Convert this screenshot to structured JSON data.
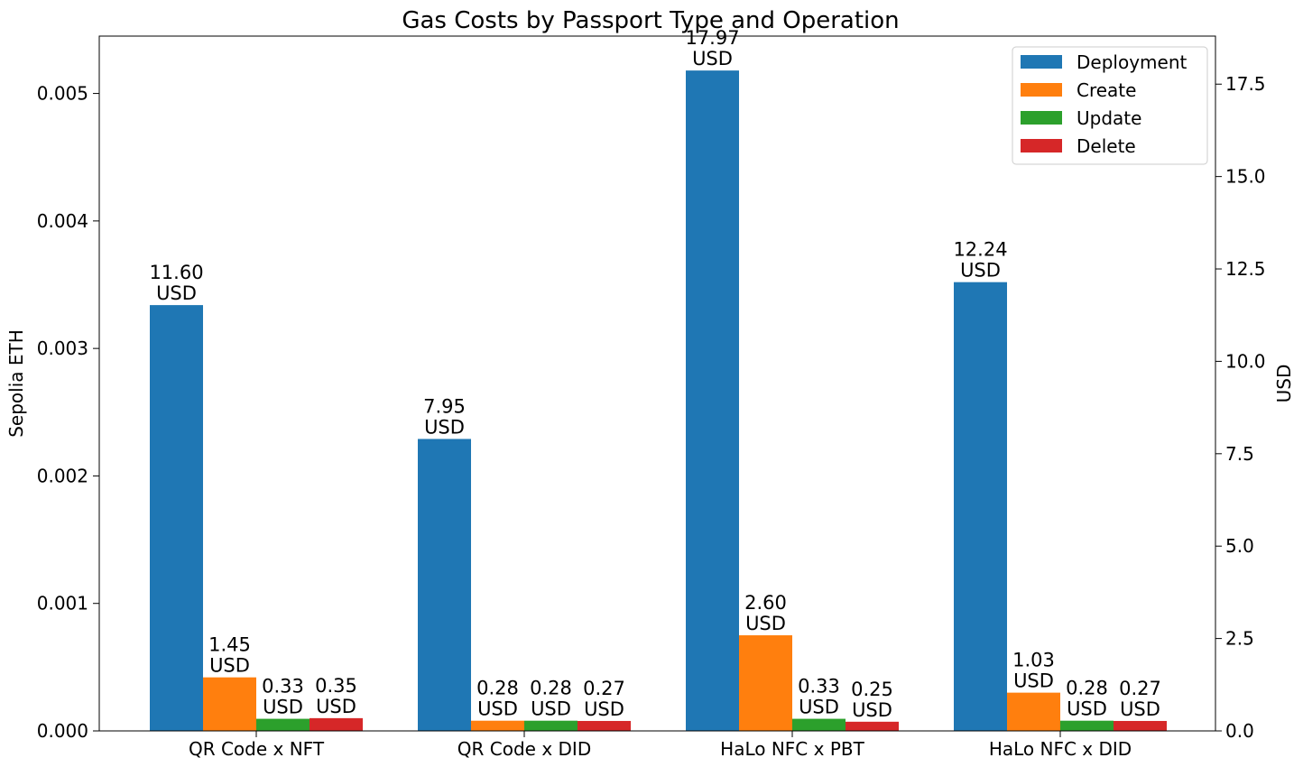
{
  "chart_data": {
    "type": "bar",
    "title": "Gas Costs by Passport Type and Operation",
    "ylabel": "Sepolia ETH",
    "y2label": "USD",
    "categories": [
      "QR Code x NFT",
      "QR Code x DID",
      "HaLo NFC x PBT",
      "HaLo NFC x DID"
    ],
    "ylim": [
      0,
      0.00545
    ],
    "y2lim": [
      0,
      18.8
    ],
    "yticks": [
      0.0,
      0.001,
      0.002,
      0.003,
      0.004,
      0.005
    ],
    "yticklabels": [
      "0.000",
      "0.001",
      "0.002",
      "0.003",
      "0.004",
      "0.005"
    ],
    "y2ticks": [
      0.0,
      2.5,
      5.0,
      7.5,
      10.0,
      12.5,
      15.0,
      17.5
    ],
    "y2ticklabels": [
      "0.0",
      "2.5",
      "5.0",
      "7.5",
      "10.0",
      "12.5",
      "15.0",
      "17.5"
    ],
    "legend_position": "top-right",
    "grid": false,
    "series": [
      {
        "name": "Deployment",
        "color": "#1f77b4",
        "values": [
          0.00334,
          0.00229,
          0.00518,
          0.00352
        ],
        "labels": [
          [
            "11.60",
            "USD"
          ],
          [
            "7.95",
            "USD"
          ],
          [
            "17.97",
            "USD"
          ],
          [
            "12.24",
            "USD"
          ]
        ]
      },
      {
        "name": "Create",
        "color": "#ff7f0e",
        "values": [
          0.00042,
          8e-05,
          0.00075,
          0.0003
        ],
        "labels": [
          [
            "1.45",
            "USD"
          ],
          [
            "0.28",
            "USD"
          ],
          [
            "2.60",
            "USD"
          ],
          [
            "1.03",
            "USD"
          ]
        ]
      },
      {
        "name": "Update",
        "color": "#2ca02c",
        "values": [
          9.5e-05,
          8e-05,
          9.5e-05,
          8e-05
        ],
        "labels": [
          [
            "0.33",
            "USD"
          ],
          [
            "0.28",
            "USD"
          ],
          [
            "0.33",
            "USD"
          ],
          [
            "0.28",
            "USD"
          ]
        ]
      },
      {
        "name": "Delete",
        "color": "#d62728",
        "values": [
          0.0001,
          7.8e-05,
          7.2e-05,
          7.8e-05
        ],
        "labels": [
          [
            "0.35",
            "USD"
          ],
          [
            "0.27",
            "USD"
          ],
          [
            "0.25",
            "USD"
          ],
          [
            "0.27",
            "USD"
          ]
        ]
      }
    ]
  }
}
